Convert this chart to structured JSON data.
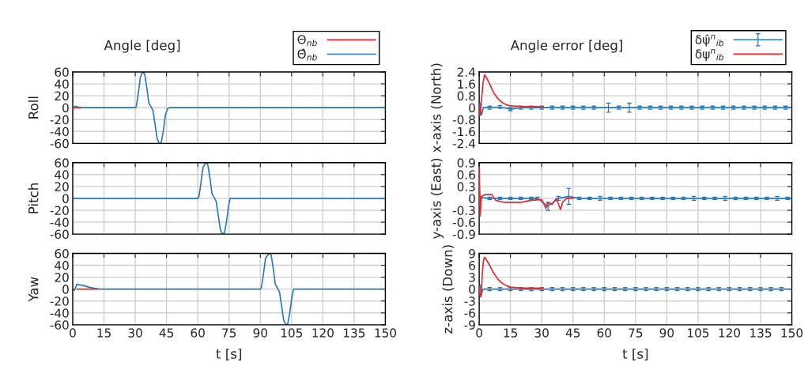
{
  "chart_data": [
    {
      "type": "line",
      "title": "Angle [deg]",
      "ylabel": "Roll",
      "xlim": [
        0,
        150
      ],
      "xticks": [
        0,
        15,
        30,
        45,
        60,
        75,
        90,
        105,
        120,
        135,
        150
      ],
      "ylim": [
        -60,
        60
      ],
      "yticks": [
        -60,
        -40,
        -20,
        0,
        20,
        40,
        60
      ],
      "grid": true,
      "tick_labels": "y",
      "legend": "top right",
      "series": [
        {
          "name": "Θ$_{nb}$",
          "color": "#e8282c",
          "x": [
            0,
            1,
            2,
            3,
            4
          ],
          "values": [
            0,
            0,
            0,
            0,
            0
          ]
        },
        {
          "name": "Θ̂$_{nb}$",
          "color": "#2a7ab9",
          "x": [
            0,
            1,
            2,
            3,
            5,
            30,
            30.5,
            31.5,
            32.5,
            33.5,
            34.5,
            35.5,
            36.5,
            37.5,
            38.5,
            39.5,
            40.5,
            41.5,
            42.5,
            43.5,
            44.5,
            45.5,
            46.3,
            150
          ],
          "values": [
            0,
            2,
            2,
            0,
            0,
            0,
            2,
            25,
            52,
            60,
            57,
            35,
            8,
            2,
            -5,
            -28,
            -52,
            -60,
            -58,
            -38,
            -12,
            -2,
            0,
            0
          ]
        }
      ]
    },
    {
      "type": "line",
      "title": "Angle error [deg]",
      "ylabel": "x-axis (North)",
      "xlim": [
        0,
        150
      ],
      "xticks": [
        0,
        15,
        30,
        45,
        60,
        75,
        90,
        105,
        120,
        135,
        150
      ],
      "ylim": [
        -2.4,
        2.4
      ],
      "yticks": [
        -2.4,
        -1.6,
        -0.8,
        0,
        0.8,
        1.6,
        2.4
      ],
      "grid": true,
      "tick_labels": "y",
      "legend": "top right",
      "series": [
        {
          "name": "δψ̂$^{n}$$_{ib}$",
          "color": "#2a7ab9",
          "x": [
            0,
            0.5,
            1,
            1.5,
            2,
            5,
            10,
            15,
            20,
            25,
            30,
            35,
            40,
            45,
            50,
            55,
            62,
            67,
            72,
            77,
            82,
            87,
            92,
            97,
            102,
            107,
            112,
            117,
            122,
            127,
            132,
            137,
            142,
            147,
            150
          ],
          "values": [
            0,
            0.3,
            -0.5,
            -0.3,
            0,
            0,
            0.05,
            -0.1,
            0,
            0,
            0,
            0,
            0,
            0,
            0,
            0,
            0,
            0,
            0,
            0,
            0,
            0,
            0,
            0,
            0,
            0,
            0,
            0,
            0,
            0,
            0,
            0,
            0,
            0,
            0
          ],
          "errors": [
            null,
            null,
            null,
            null,
            null,
            0.1,
            0.1,
            0.1,
            0.1,
            0.1,
            0.1,
            0.1,
            0.1,
            0.1,
            0.1,
            0.1,
            0.3,
            0.1,
            0.3,
            0.1,
            0.1,
            0.1,
            0.1,
            0.1,
            0.1,
            0.1,
            0.1,
            0.1,
            0.1,
            0.1,
            0.1,
            0.1,
            0.1,
            0.1,
            null
          ]
        },
        {
          "name": "δψ$^{n}$$_{ib}$",
          "color": "#e8282c",
          "x": [
            0,
            0.5,
            1,
            1.8,
            2.5,
            3,
            5,
            7,
            9,
            11,
            13,
            15,
            20,
            30,
            31
          ],
          "values": [
            0,
            -0.5,
            0.4,
            1.6,
            2.2,
            2.15,
            1.6,
            1.0,
            0.6,
            0.35,
            0.2,
            0.12,
            0.08,
            0.06,
            0
          ]
        }
      ]
    },
    {
      "type": "line",
      "ylabel": "Pitch",
      "xlim": [
        0,
        150
      ],
      "xticks": [
        0,
        15,
        30,
        45,
        60,
        75,
        90,
        105,
        120,
        135,
        150
      ],
      "ylim": [
        -60,
        60
      ],
      "yticks": [
        -60,
        -40,
        -20,
        0,
        20,
        40,
        60
      ],
      "grid": true,
      "tick_labels": "y",
      "series": [
        {
          "color": "#2a7ab9",
          "x": [
            0,
            60,
            60.5,
            61.5,
            62.5,
            63.8,
            64.8,
            65.8,
            66.8,
            67.8,
            68.8,
            69.8,
            70.8,
            71.8,
            72.8,
            73.8,
            74.8,
            75.5,
            150
          ],
          "values": [
            0,
            0,
            2,
            25,
            52,
            60,
            57,
            35,
            8,
            2,
            -5,
            -28,
            -52,
            -60,
            -58,
            -38,
            -12,
            0,
            0
          ]
        }
      ]
    },
    {
      "type": "line",
      "ylabel": "y-axis (East)",
      "xlim": [
        0,
        150
      ],
      "xticks": [
        0,
        15,
        30,
        45,
        60,
        75,
        90,
        105,
        120,
        135,
        150
      ],
      "ylim": [
        -0.9,
        0.9
      ],
      "yticks": [
        -0.9,
        -0.6,
        -0.3,
        0,
        0.3,
        0.6,
        0.9
      ],
      "grid": true,
      "tick_labels": "y",
      "series": [
        {
          "color": "#e8282c",
          "x": [
            0,
            0.5,
            1,
            3,
            6,
            8,
            12,
            16,
            20,
            25,
            30,
            32,
            33,
            35,
            37,
            39,
            40,
            42,
            45
          ],
          "values": [
            0.8,
            -0.45,
            0.05,
            0.1,
            0.1,
            -0.05,
            -0.1,
            -0.1,
            -0.1,
            -0.05,
            -0.03,
            -0.25,
            -0.1,
            -0.15,
            0,
            -0.28,
            -0.1,
            0,
            0
          ]
        },
        {
          "color": "#2a7ab9",
          "x": [
            0,
            0.5,
            1,
            5,
            10,
            15,
            20,
            25,
            28,
            33,
            38,
            43,
            48,
            53,
            58,
            63,
            68,
            73,
            78,
            83,
            88,
            93,
            98,
            103,
            108,
            113,
            118,
            123,
            128,
            133,
            138,
            143,
            148,
            150
          ],
          "values": [
            0.3,
            -0.2,
            0.02,
            0,
            0,
            0,
            0,
            0,
            0,
            -0.2,
            0,
            0.05,
            0,
            0,
            0,
            0,
            0,
            0,
            0,
            0,
            0,
            0,
            0,
            0,
            0,
            0,
            0,
            0,
            0,
            0,
            0,
            0,
            0,
            0
          ],
          "errors": [
            null,
            null,
            null,
            0.03,
            0.03,
            0.03,
            0.03,
            0.03,
            0.03,
            0.1,
            0.05,
            0.2,
            0.03,
            0.03,
            0.05,
            0.03,
            0.03,
            0.03,
            0.03,
            0.03,
            0.03,
            0.03,
            0.03,
            0.05,
            0.03,
            0.03,
            0.05,
            0.03,
            0.03,
            0.03,
            0.03,
            0.05,
            0.03,
            null
          ]
        }
      ]
    },
    {
      "type": "line",
      "ylabel": "Yaw",
      "xlabel": "t [s]",
      "xlim": [
        0,
        150
      ],
      "xticks": [
        0,
        15,
        30,
        45,
        60,
        75,
        90,
        105,
        120,
        135,
        150
      ],
      "ylim": [
        -60,
        60
      ],
      "yticks": [
        -60,
        -40,
        -20,
        0,
        20,
        40,
        60
      ],
      "grid": true,
      "series": [
        {
          "color": "#e8282c",
          "x": [
            2,
            4,
            8,
            12
          ],
          "values": [
            0,
            0,
            0,
            0
          ]
        },
        {
          "color": "#2a7ab9",
          "x": [
            0,
            0.8,
            2,
            5,
            8,
            11,
            13,
            90,
            90.5,
            91.5,
            92.5,
            94.2,
            95.2,
            96.2,
            97.2,
            98.2,
            99.2,
            100.2,
            101.2,
            102.2,
            103.2,
            104.2,
            105.2,
            106,
            150
          ],
          "values": [
            0,
            -2,
            8,
            6,
            3,
            1,
            0,
            0,
            2,
            25,
            52,
            60,
            57,
            35,
            8,
            2,
            -5,
            -28,
            -52,
            -60,
            -58,
            -38,
            -12,
            0,
            0
          ]
        }
      ]
    },
    {
      "type": "line",
      "ylabel": "z-axis (Down)",
      "xlabel": "t [s]",
      "xlim": [
        0,
        150
      ],
      "xticks": [
        0,
        15,
        30,
        45,
        60,
        75,
        90,
        105,
        120,
        135,
        150
      ],
      "ylim": [
        -9,
        9
      ],
      "yticks": [
        -9,
        -6,
        -3,
        0,
        3,
        6,
        9
      ],
      "grid": true,
      "series": [
        {
          "color": "#e8282c",
          "x": [
            0,
            0.7,
            1,
            1.5,
            2,
            2.5,
            3,
            5,
            7,
            9,
            11,
            13,
            15,
            20,
            30,
            31
          ],
          "values": [
            0,
            -2,
            -1.5,
            4,
            7,
            8,
            7.8,
            6,
            4,
            2.5,
            1.5,
            0.9,
            0.5,
            0.3,
            0.2,
            0
          ]
        },
        {
          "color": "#2a7ab9",
          "x": [
            0,
            0.5,
            1,
            1.5,
            2,
            5,
            10,
            15,
            20,
            25,
            30,
            35,
            40,
            45,
            50,
            55,
            60,
            65,
            70,
            75,
            80,
            85,
            90,
            95,
            100,
            105,
            110,
            115,
            120,
            125,
            130,
            135,
            140,
            145,
            150
          ],
          "values": [
            0,
            1,
            -1.5,
            -0.5,
            0,
            0,
            0,
            0,
            0,
            0,
            0,
            0,
            0,
            0,
            0,
            0,
            0,
            0,
            0,
            0,
            0,
            0,
            0,
            0,
            0,
            0,
            0,
            0,
            0,
            0,
            0,
            0,
            0,
            0,
            0
          ],
          "errors": [
            null,
            null,
            null,
            null,
            null,
            0.4,
            0.4,
            0.4,
            0.4,
            0.4,
            0.4,
            0.4,
            0.4,
            0.4,
            0.4,
            0.4,
            0.4,
            0.4,
            0.4,
            0.4,
            0.4,
            0.4,
            0.4,
            0.4,
            0.4,
            0.4,
            0.4,
            0.4,
            0.4,
            0.4,
            0.4,
            0.4,
            0.4,
            0.4,
            null
          ]
        }
      ]
    }
  ]
}
